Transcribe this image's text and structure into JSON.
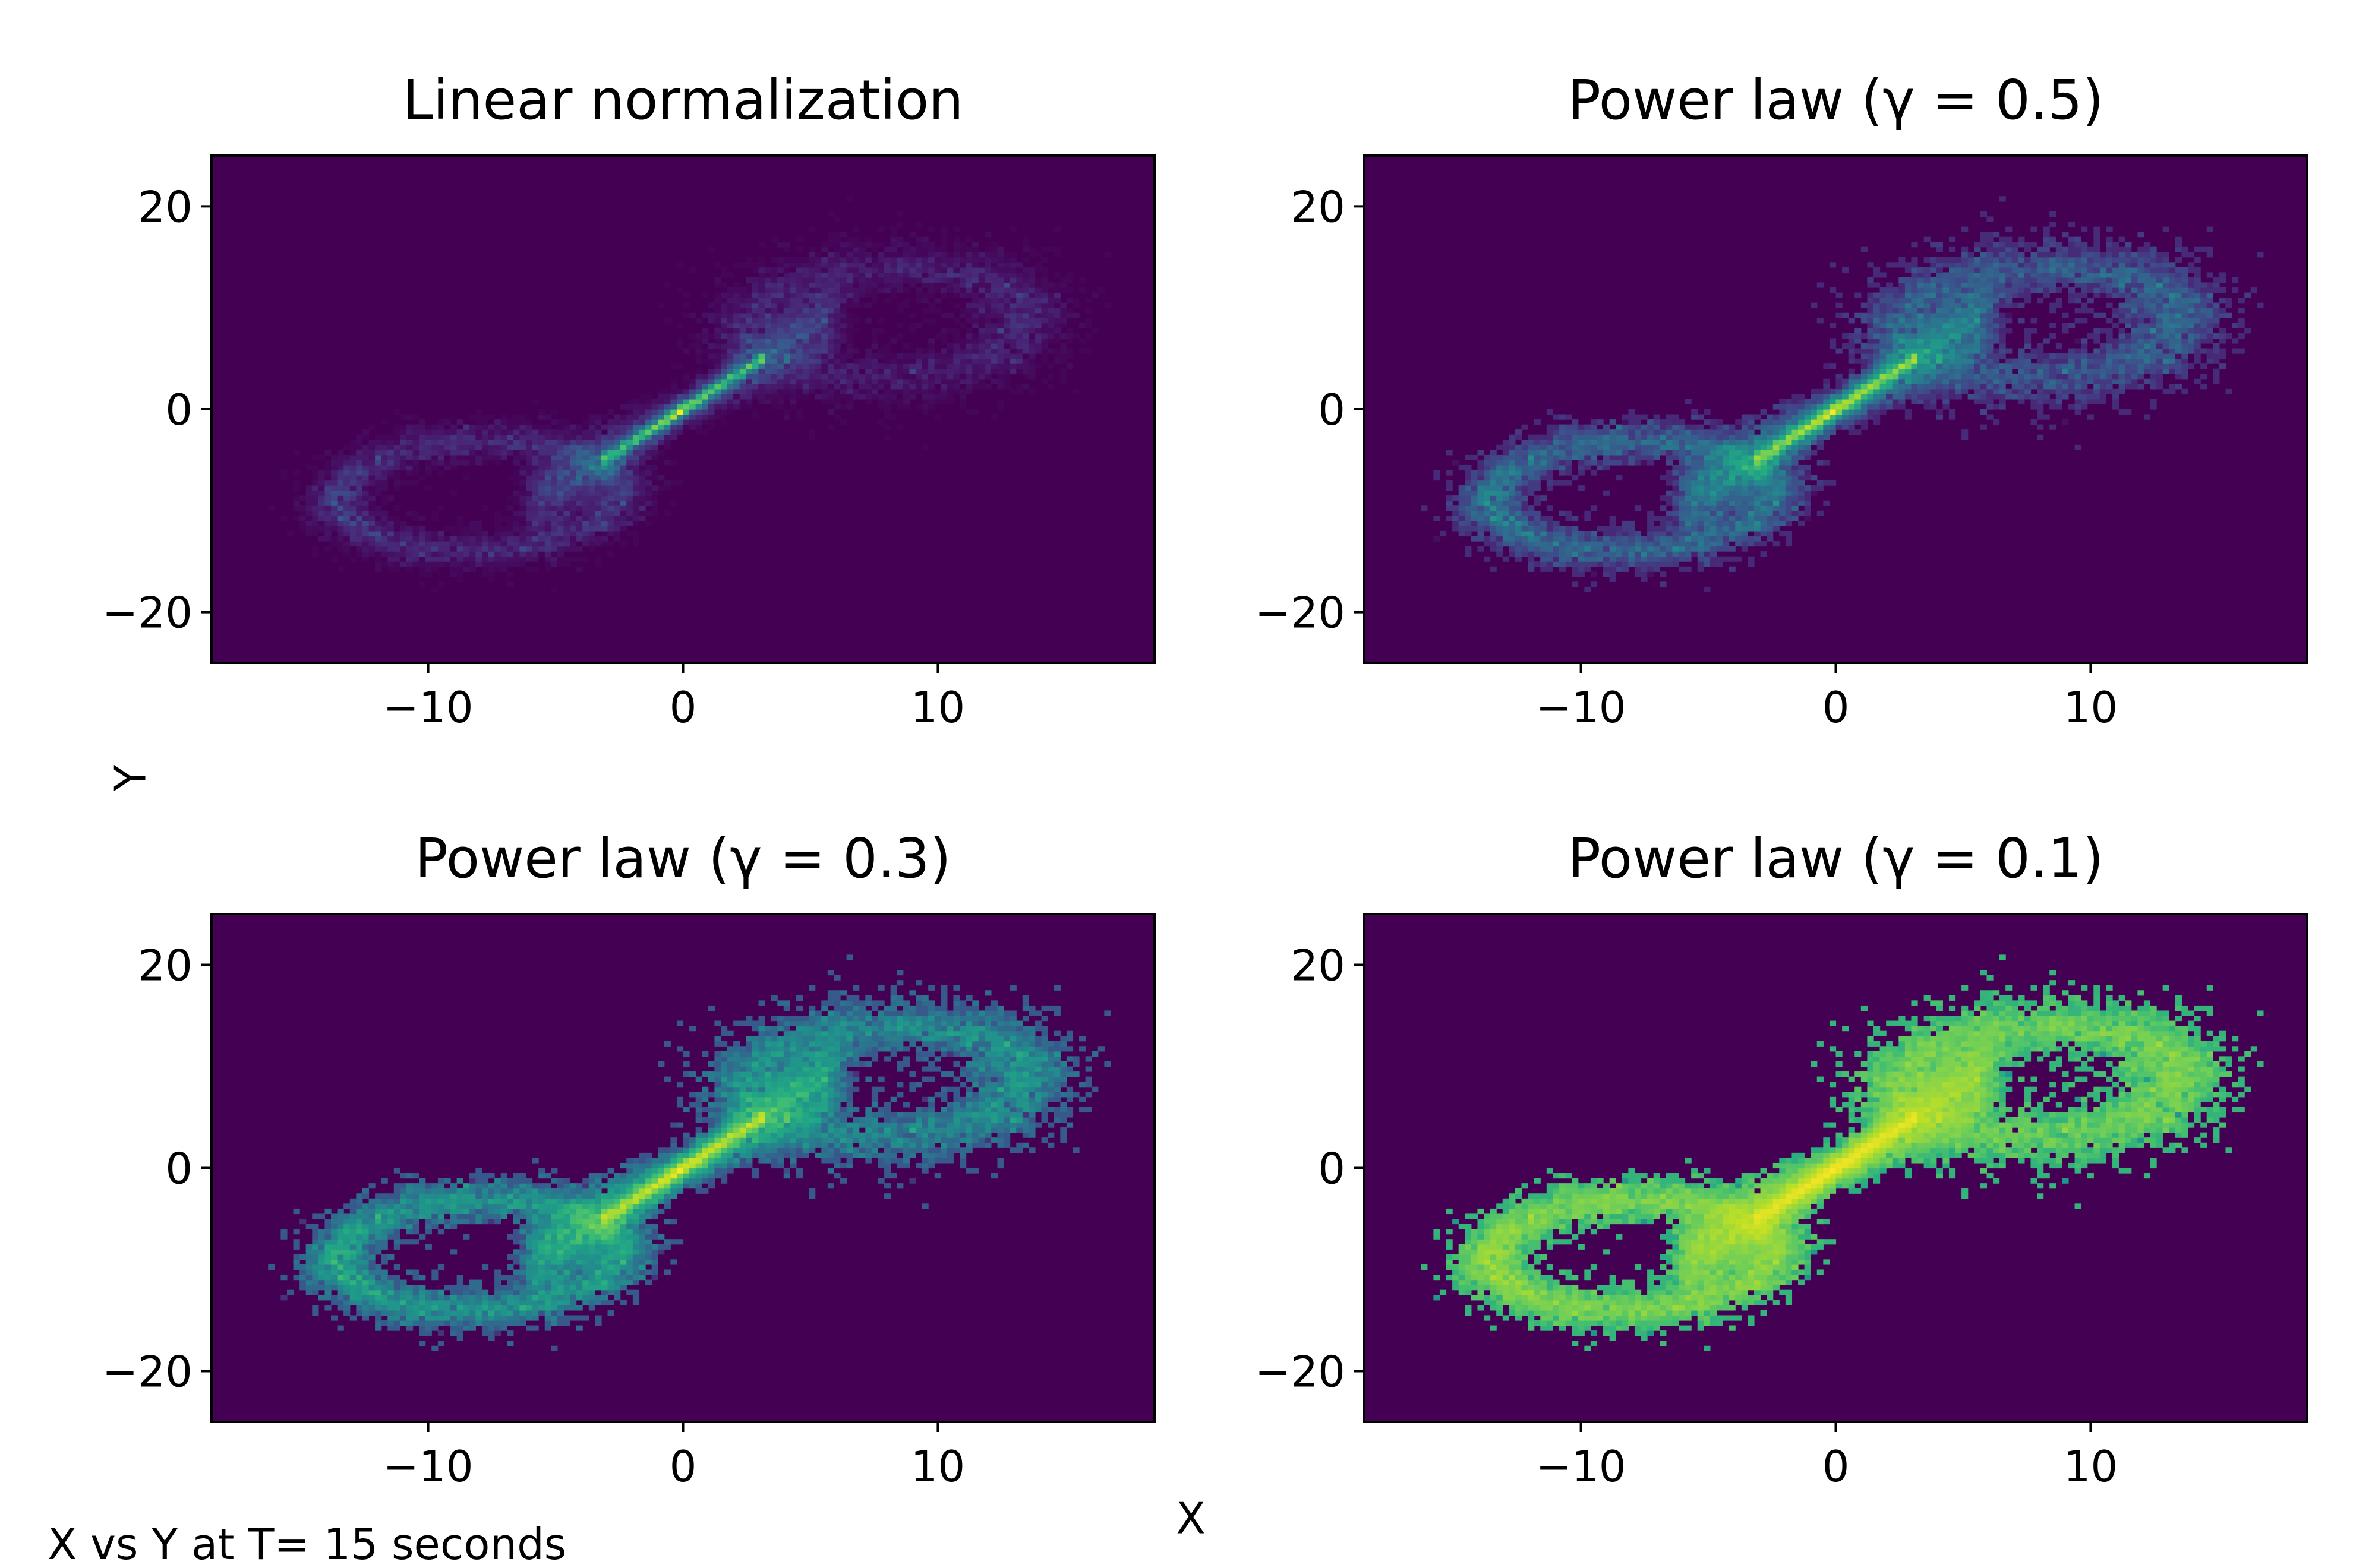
{
  "figure": {
    "caption": "X vs Y at T= 15 seconds",
    "xlabel": "X",
    "ylabel": "Y",
    "colormap": "viridis"
  },
  "chart_data": [
    {
      "type": "heatmap",
      "title": "Linear normalization",
      "normalization": "linear",
      "gamma": 1.0,
      "xlim": [
        -18.5,
        18.5
      ],
      "ylim": [
        -25,
        25
      ],
      "xticks": [
        -10,
        0,
        10
      ],
      "xtick_labels": [
        "−10",
        "0",
        "10"
      ],
      "yticks": [
        -20,
        0,
        20
      ],
      "ytick_labels": [
        "−20",
        "0",
        "20"
      ],
      "grid": false
    },
    {
      "type": "heatmap",
      "title": "Power law (γ = 0.5)",
      "normalization": "power",
      "gamma": 0.5,
      "xlim": [
        -18.5,
        18.5
      ],
      "ylim": [
        -25,
        25
      ],
      "xticks": [
        -10,
        0,
        10
      ],
      "xtick_labels": [
        "−10",
        "0",
        "10"
      ],
      "yticks": [
        -20,
        0,
        20
      ],
      "ytick_labels": [
        "−20",
        "0",
        "20"
      ],
      "grid": false
    },
    {
      "type": "heatmap",
      "title": "Power law (γ = 0.3)",
      "normalization": "power",
      "gamma": 0.3,
      "xlim": [
        -18.5,
        18.5
      ],
      "ylim": [
        -25,
        25
      ],
      "xticks": [
        -10,
        0,
        10
      ],
      "xtick_labels": [
        "−10",
        "0",
        "10"
      ],
      "yticks": [
        -20,
        0,
        20
      ],
      "ytick_labels": [
        "−20",
        "0",
        "20"
      ],
      "grid": false
    },
    {
      "type": "heatmap",
      "title": "Power law (γ = 0.1)",
      "normalization": "power",
      "gamma": 0.1,
      "xlim": [
        -18.5,
        18.5
      ],
      "ylim": [
        -25,
        25
      ],
      "xticks": [
        -10,
        0,
        10
      ],
      "xtick_labels": [
        "−10",
        "0",
        "10"
      ],
      "yticks": [
        -20,
        0,
        20
      ],
      "ytick_labels": [
        "−20",
        "0",
        "20"
      ],
      "grid": false
    }
  ]
}
